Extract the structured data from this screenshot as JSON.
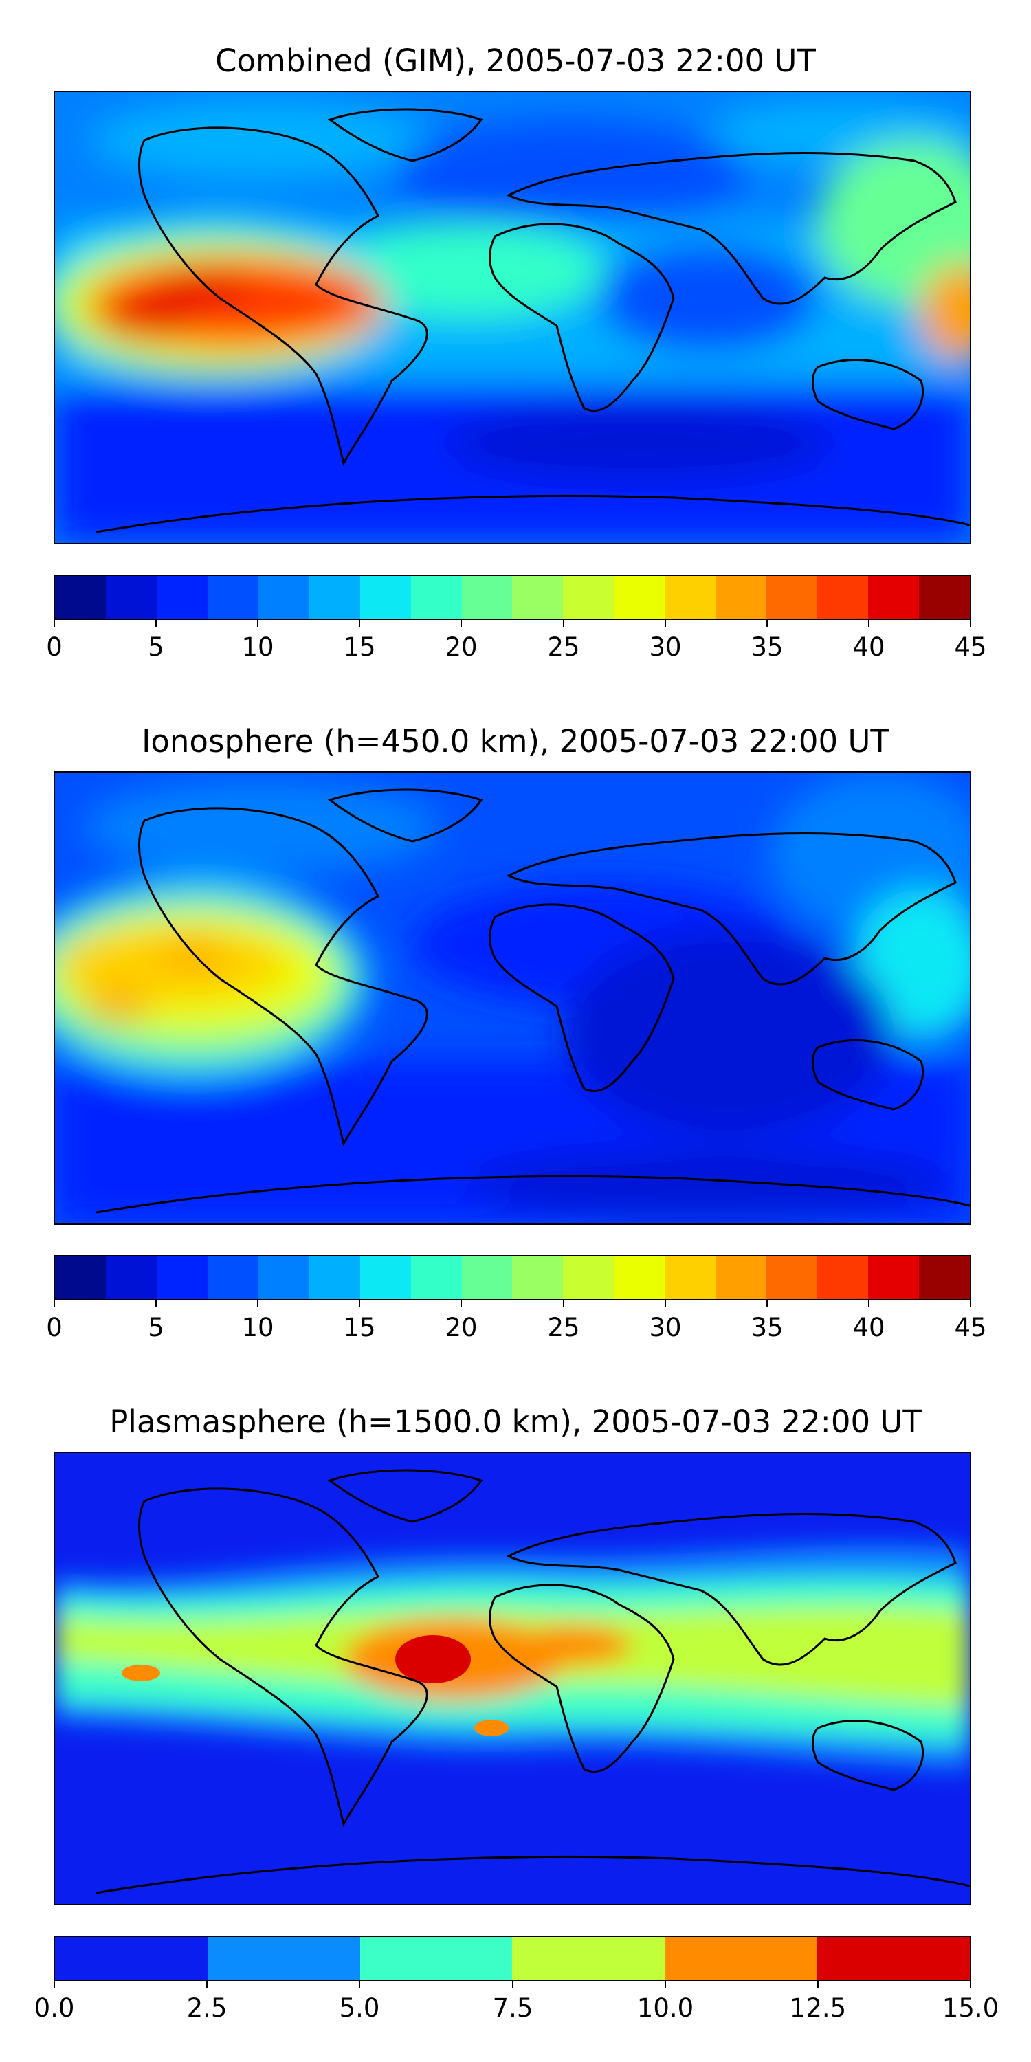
{
  "panels": [
    {
      "title": "Combined (GIM), 2005-07-03 22:00 UT",
      "ticks": [
        "0",
        "5",
        "10",
        "15",
        "20",
        "25",
        "30",
        "35",
        "40",
        "45"
      ],
      "levels": [
        0,
        2.5,
        5,
        7.5,
        10,
        12.5,
        15,
        17.5,
        20,
        22.5,
        25,
        27.5,
        30,
        32.5,
        35,
        37.5,
        40,
        42.5,
        45
      ],
      "colors": [
        "#000a8f",
        "#0012d6",
        "#0024ff",
        "#0050ff",
        "#0080ff",
        "#00b0ff",
        "#0de8f5",
        "#33ffc9",
        "#66ff96",
        "#99ff63",
        "#c9ff30",
        "#eaff00",
        "#ffd000",
        "#ffa000",
        "#ff6a00",
        "#ff3a00",
        "#e50000",
        "#990000"
      ]
    },
    {
      "title": "Ionosphere  (h=450.0 km), 2005-07-03 22:00 UT",
      "ticks": [
        "0",
        "5",
        "10",
        "15",
        "20",
        "25",
        "30",
        "35",
        "40",
        "45"
      ],
      "levels": [
        0,
        2.5,
        5,
        7.5,
        10,
        12.5,
        15,
        17.5,
        20,
        22.5,
        25,
        27.5,
        30,
        32.5,
        35,
        37.5,
        40,
        42.5,
        45
      ],
      "colors": [
        "#000a8f",
        "#0012d6",
        "#0024ff",
        "#0050ff",
        "#0080ff",
        "#00b0ff",
        "#0de8f5",
        "#33ffc9",
        "#66ff96",
        "#99ff63",
        "#c9ff30",
        "#eaff00",
        "#ffd000",
        "#ffa000",
        "#ff6a00",
        "#ff3a00",
        "#e50000",
        "#990000"
      ]
    },
    {
      "title": "Plasmasphere (h=1500.0 km), 2005-07-03 22:00 UT",
      "ticks": [
        "0.0",
        "2.5",
        "5.0",
        "7.5",
        "10.0",
        "12.5",
        "15.0"
      ],
      "levels": [
        0,
        2.5,
        5,
        7.5,
        10,
        12.5,
        15
      ],
      "colors": [
        "#0a1ef0",
        "#0a8cff",
        "#3cffc8",
        "#c0ff3a",
        "#ff8c00",
        "#db0000"
      ]
    }
  ]
}
